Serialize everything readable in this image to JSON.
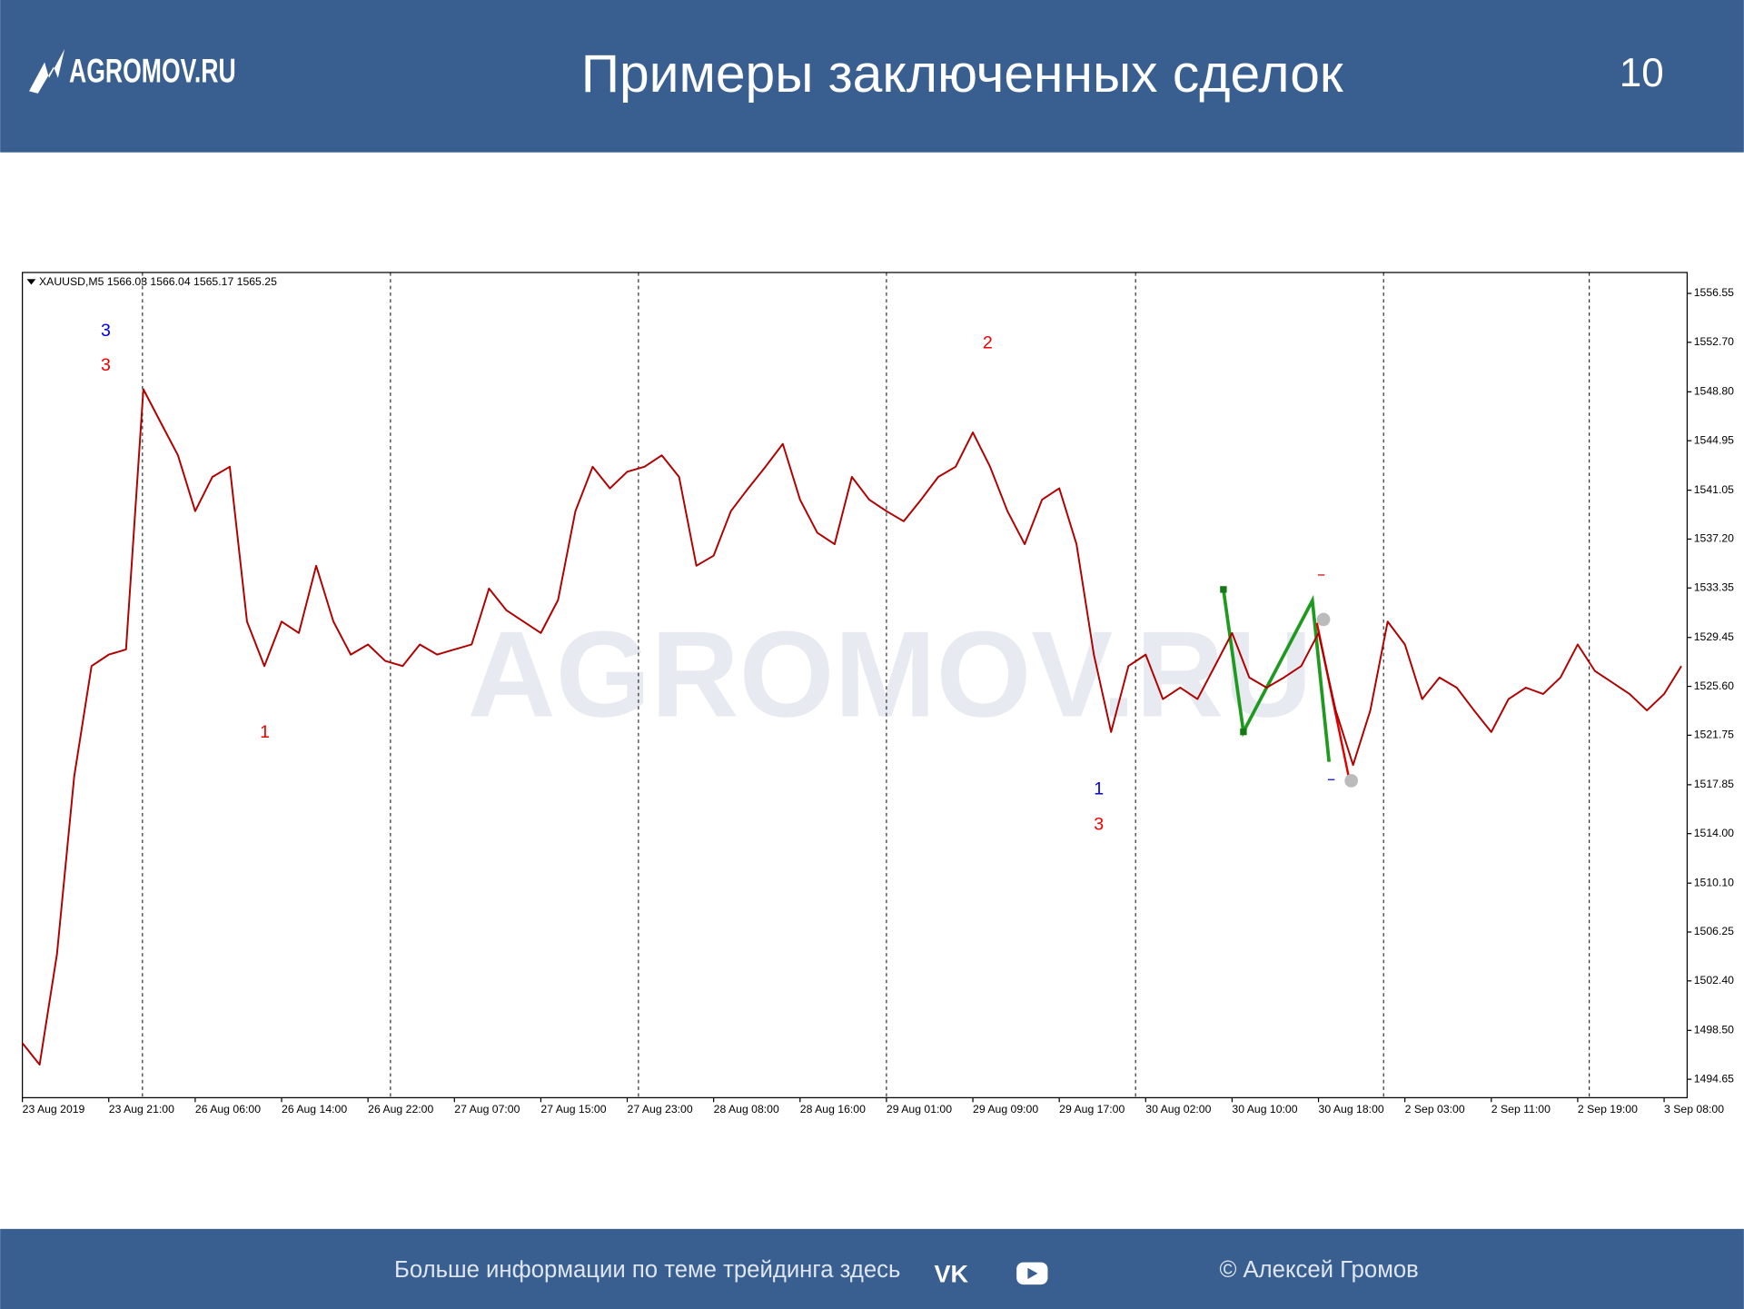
{
  "header": {
    "logo": "AGROMOV.RU",
    "title": "Примеры заключенных сделок",
    "page_number": "10"
  },
  "footer": {
    "text": "Больше информации по теме трейдинга здесь",
    "copyright": "© Алексей Громов"
  },
  "chart_data": {
    "type": "line",
    "info": "XAUUSD,M5  1566.03 1566.04 1565.17 1565.25",
    "watermark": "AGROMOV.RU",
    "annotations": [
      "3",
      "3",
      "1",
      "2",
      "1",
      "3"
    ],
    "categories": [
      "23 Aug 2019",
      null,
      null,
      null,
      null,
      "23 Aug 21:00",
      null,
      null,
      null,
      null,
      "26 Aug 06:00",
      null,
      null,
      null,
      null,
      "26 Aug 14:00",
      null,
      null,
      null,
      null,
      "26 Aug 22:00",
      null,
      null,
      null,
      null,
      "27 Aug 07:00",
      null,
      null,
      null,
      null,
      "27 Aug 15:00",
      null,
      null,
      null,
      null,
      "27 Aug 23:00",
      null,
      null,
      null,
      null,
      "28 Aug 08:00",
      null,
      null,
      null,
      null,
      "28 Aug 16:00",
      null,
      null,
      null,
      null,
      "29 Aug 01:00",
      null,
      null,
      null,
      null,
      "29 Aug 09:00",
      null,
      null,
      null,
      null,
      "29 Aug 17:00",
      null,
      null,
      null,
      null,
      "30 Aug 02:00",
      null,
      null,
      null,
      null,
      "30 Aug 10:00",
      null,
      null,
      null,
      null,
      "30 Aug 18:00",
      null,
      null,
      null,
      null,
      "2 Sep 03:00",
      null,
      null,
      null,
      null,
      "2 Sep 11:00",
      null,
      null,
      null,
      null,
      "2 Sep 19:00",
      null,
      null,
      null,
      null,
      "3 Sep 08:00",
      null
    ],
    "series": [
      {
        "name": "XAUUSD,M5",
        "color": "#b00000",
        "values": [
          1497.5,
          1495.8,
          1504.5,
          1518.5,
          1527.2,
          1528.1,
          1528.5,
          1549.0,
          1546.4,
          1543.8,
          1539.4,
          1542.1,
          1542.9,
          1530.7,
          1527.2,
          1530.7,
          1529.8,
          1535.1,
          1530.7,
          1528.1,
          1528.9,
          1527.6,
          1527.2,
          1528.9,
          1528.1,
          1528.5,
          1528.9,
          1533.3,
          1531.6,
          1530.7,
          1529.8,
          1532.4,
          1539.4,
          1542.9,
          1541.2,
          1542.5,
          1542.9,
          1543.8,
          1542.1,
          1535.1,
          1535.9,
          1539.4,
          1541.2,
          1542.9,
          1544.7,
          1540.3,
          1537.7,
          1536.8,
          1542.1,
          1540.3,
          1539.4,
          1538.6,
          1540.3,
          1542.1,
          1542.9,
          1545.6,
          1542.9,
          1539.4,
          1536.8,
          1540.3,
          1541.2,
          1536.8,
          1528.1,
          1522.0,
          1527.2,
          1528.1,
          1524.6,
          1525.5,
          1524.6,
          1527.2,
          1529.8,
          1526.3,
          1525.5,
          1526.3,
          1527.2,
          1529.8,
          1523.7,
          1519.4,
          1523.7,
          1530.7,
          1528.9,
          1524.6,
          1526.3,
          1525.5,
          1523.7,
          1522.0,
          1524.6,
          1525.5,
          1525.0,
          1526.3,
          1528.9,
          1526.8,
          1525.9,
          1525.0,
          1523.7,
          1525.0,
          1527.2
        ]
      }
    ],
    "ylim": [
      1493.2,
      1558.2
    ],
    "yticks": [
      1556.55,
      {
        "value": 1552.7,
        "label": "1552.70"
      },
      {
        "value": 1548.8,
        "label": "1548.80"
      },
      1544.95,
      1541.05,
      {
        "value": 1537.2,
        "label": "1537.20"
      },
      1533.35,
      1529.45,
      {
        "value": 1525.6,
        "label": "1525.60"
      },
      1521.75,
      1517.85,
      {
        "value": 1514.0,
        "label": "1514.00"
      },
      {
        "value": 1510.1,
        "label": "1510.10"
      },
      1506.25,
      {
        "value": 1502.4,
        "label": "1502.40"
      },
      {
        "value": 1498.5,
        "label": "1498.50"
      },
      1494.65
    ],
    "grid": false
  }
}
